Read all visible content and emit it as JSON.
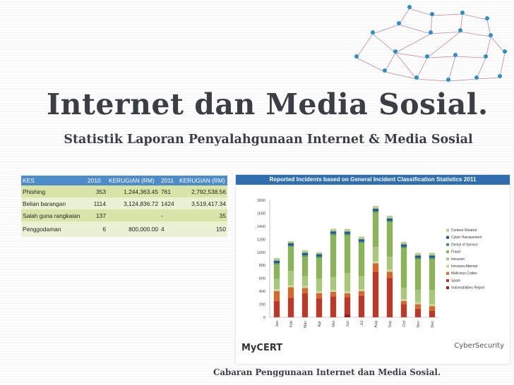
{
  "slide": {
    "title": "Internet dan Media Sosial.",
    "subtitle": "Statistik Laporan Penyalahgunaan Internet & Media Sosial",
    "footer": "Cabaran Penggunaan Internet dan Media Sosial."
  },
  "stats_table": {
    "headers": [
      "KES",
      "2010",
      "KERUGIAN (RM)",
      "2011",
      "KERUGIAN (RM)"
    ],
    "rows": [
      [
        "Phishing",
        "353",
        "1,244,363.45",
        "761",
        "2,792,538.56"
      ],
      [
        "Belian barangan",
        "1114",
        "3,124,836.72",
        "1424",
        "3,519,417.34"
      ],
      [
        "Salah guna rangkaian",
        "137",
        "",
        "-",
        "35"
      ],
      [
        "Penggodaman",
        "6",
        "800,000.00",
        "4",
        "150"
      ]
    ]
  },
  "chart_data": {
    "type": "bar",
    "stacked": true,
    "title": "Reported Incidents based on General Incident Classification Statistics 2011",
    "categories": [
      "Jan",
      "Feb",
      "Mac",
      "Apr",
      "Mei",
      "Jun",
      "Jul",
      "Aug",
      "Sep",
      "Oct",
      "Nov",
      "Dec"
    ],
    "ylim": [
      0,
      1800
    ],
    "yticks": [
      0,
      200,
      400,
      600,
      800,
      1000,
      1200,
      1400,
      1600,
      1800
    ],
    "grid": false,
    "legend_position": "right",
    "series": [
      {
        "name": "Vulnerabilities Report",
        "color": "#9a1f1f",
        "values": [
          2,
          2,
          2,
          2,
          2,
          50,
          2,
          2,
          2,
          2,
          2,
          2
        ]
      },
      {
        "name": "Spam",
        "color": "#b63a2a",
        "values": [
          250,
          300,
          370,
          290,
          320,
          260,
          330,
          700,
          600,
          200,
          130,
          100
        ]
      },
      {
        "name": "Malicious Codes",
        "color": "#d06a30",
        "values": [
          150,
          160,
          80,
          80,
          70,
          60,
          70,
          130,
          100,
          50,
          70,
          70
        ]
      },
      {
        "name": "Intrusion Attempt",
        "color": "#c9d9a0",
        "values": [
          30,
          30,
          30,
          30,
          30,
          30,
          30,
          30,
          30,
          30,
          30,
          30
        ]
      },
      {
        "name": "Intrusion",
        "color": "#a9c77c",
        "values": [
          160,
          220,
          150,
          190,
          200,
          280,
          200,
          220,
          200,
          170,
          190,
          220
        ]
      },
      {
        "name": "Fraud",
        "color": "#8db35a",
        "values": [
          220,
          370,
          300,
          320,
          640,
          580,
          510,
          530,
          530,
          610,
          470,
          470
        ]
      },
      {
        "name": "Denial of Service",
        "color": "#4aa05a",
        "values": [
          20,
          20,
          20,
          20,
          20,
          20,
          20,
          20,
          20,
          20,
          20,
          20
        ]
      },
      {
        "name": "Cyber Harrassment",
        "color": "#2d5a8a",
        "values": [
          40,
          40,
          40,
          40,
          40,
          40,
          40,
          40,
          40,
          40,
          40,
          40
        ]
      },
      {
        "name": "Content Related",
        "color": "#b6cf8e",
        "values": [
          40,
          30,
          40,
          30,
          40,
          40,
          40,
          40,
          40,
          40,
          40,
          40
        ]
      }
    ]
  },
  "branding": {
    "mycert": "MyCERT",
    "cybersecurity": "CyberSecurity"
  },
  "colors": {
    "text": "#3b3f45",
    "table_header": "#4e8bc9",
    "chart_header": "#2f6fb0"
  }
}
